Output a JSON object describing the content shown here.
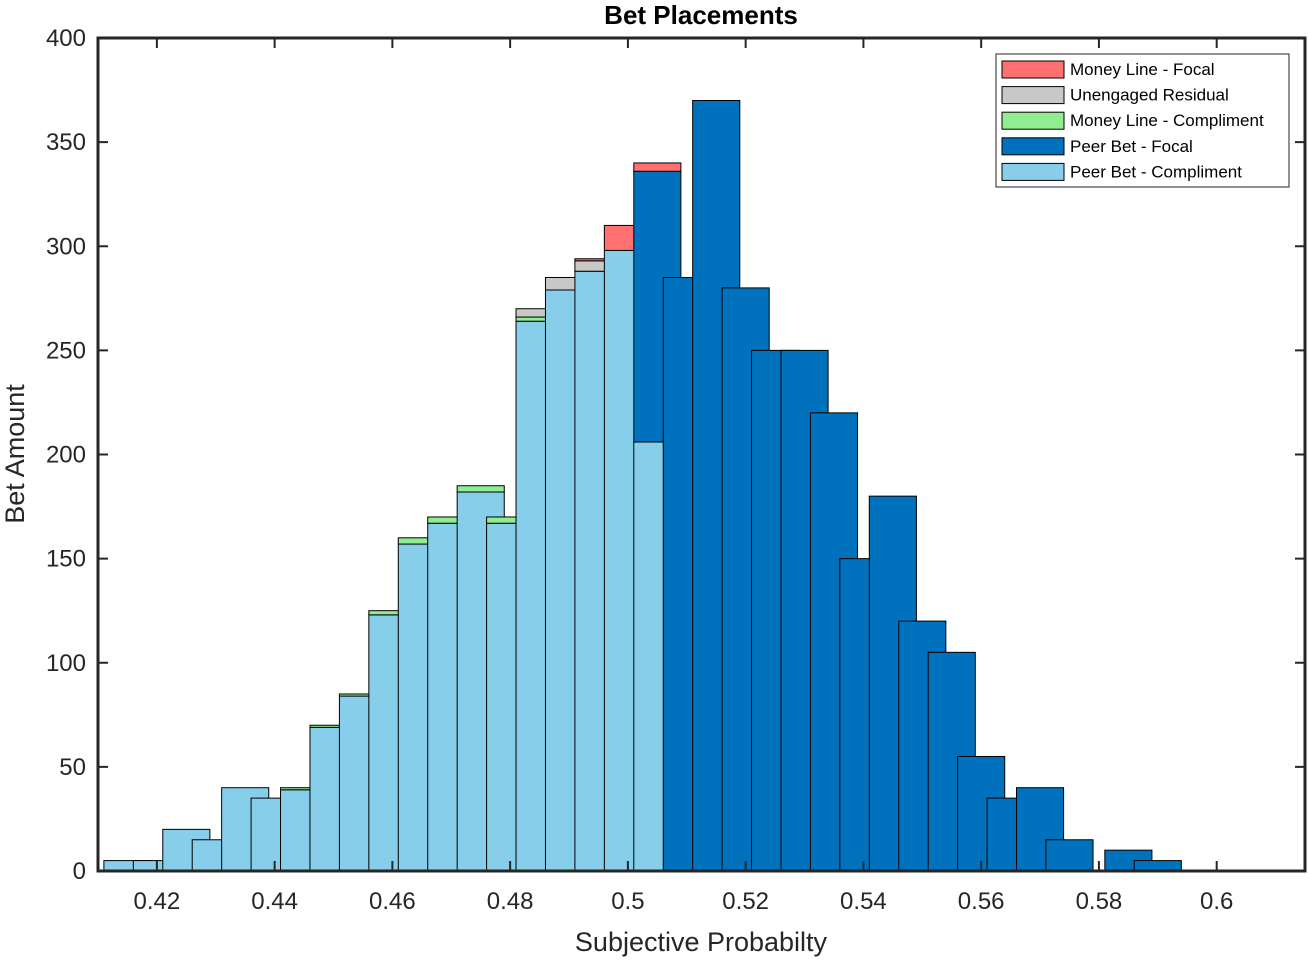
{
  "chart_data": {
    "type": "bar",
    "stacked": true,
    "title": "Bet Placements",
    "xlabel": "Subjective Probabilty",
    "ylabel": "Bet Amount",
    "xlim": [
      0.41,
      0.615
    ],
    "ylim": [
      0,
      400
    ],
    "xticks": [
      0.42,
      0.44,
      0.46,
      0.48,
      0.5,
      0.52,
      0.54,
      0.56,
      0.58,
      0.6
    ],
    "xtick_labels": [
      "0.42",
      "0.44",
      "0.46",
      "0.48",
      "0.5",
      "0.52",
      "0.54",
      "0.56",
      "0.58",
      "0.6"
    ],
    "yticks": [
      0,
      50,
      100,
      150,
      200,
      250,
      300,
      350,
      400
    ],
    "ytick_labels": [
      "0",
      "50",
      "100",
      "150",
      "200",
      "250",
      "300",
      "350",
      "400"
    ],
    "grid": false,
    "legend_position": "top-right",
    "bar_width": 0.008,
    "x": [
      0.415,
      0.42,
      0.425,
      0.43,
      0.435,
      0.44,
      0.445,
      0.45,
      0.455,
      0.46,
      0.465,
      0.47,
      0.475,
      0.48,
      0.485,
      0.49,
      0.495,
      0.5,
      0.505,
      0.51,
      0.515,
      0.52,
      0.525,
      0.53,
      0.535,
      0.54,
      0.545,
      0.55,
      0.555,
      0.56,
      0.565,
      0.57,
      0.575,
      0.58,
      0.585,
      0.59
    ],
    "series": [
      {
        "name": "Peer Bet - Compliment",
        "color": "#87CEEB",
        "values": [
          5,
          5,
          20,
          15,
          40,
          35,
          39,
          69,
          84,
          123,
          157,
          167,
          182,
          167,
          264,
          279,
          288,
          298,
          206,
          0,
          0,
          0,
          0,
          0,
          0,
          0,
          0,
          0,
          0,
          0,
          0,
          0,
          0,
          0,
          0,
          0
        ]
      },
      {
        "name": "Peer Bet - Focal",
        "color": "#0072BD",
        "values": [
          0,
          0,
          0,
          0,
          0,
          0,
          0,
          0,
          0,
          0,
          0,
          0,
          0,
          0,
          0,
          0,
          0,
          0,
          130,
          285,
          370,
          280,
          250,
          250,
          220,
          150,
          180,
          120,
          105,
          55,
          35,
          40,
          15,
          0,
          10,
          5
        ]
      },
      {
        "name": "Money Line - Compliment",
        "color": "#90EE90",
        "values": [
          0,
          0,
          0,
          0,
          0,
          0,
          1,
          1,
          1,
          2,
          3,
          3,
          3,
          3,
          2,
          0,
          0,
          0,
          0,
          0,
          0,
          0,
          0,
          0,
          0,
          0,
          0,
          0,
          0,
          0,
          0,
          0,
          0,
          0,
          0,
          0
        ]
      },
      {
        "name": "Unengaged Residual",
        "color": "#C8C8C8",
        "values": [
          0,
          0,
          0,
          0,
          0,
          0,
          0,
          0,
          0,
          0,
          0,
          0,
          0,
          0,
          4,
          6,
          5,
          0,
          0,
          0,
          0,
          0,
          0,
          0,
          0,
          0,
          0,
          0,
          0,
          0,
          0,
          0,
          0,
          0,
          0,
          0
        ]
      },
      {
        "name": "Money Line - Focal",
        "color": "#FF7070",
        "values": [
          0,
          0,
          0,
          0,
          0,
          0,
          0,
          0,
          0,
          0,
          0,
          0,
          0,
          0,
          0,
          0,
          1,
          12,
          4,
          0,
          0,
          0,
          0,
          0,
          0,
          0,
          0,
          0,
          0,
          0,
          0,
          0,
          0,
          0,
          0,
          0
        ]
      }
    ],
    "legend_order": [
      "Money Line - Focal",
      "Unengaged Residual",
      "Money Line - Compliment",
      "Peer Bet - Focal",
      "Peer Bet - Compliment"
    ]
  }
}
